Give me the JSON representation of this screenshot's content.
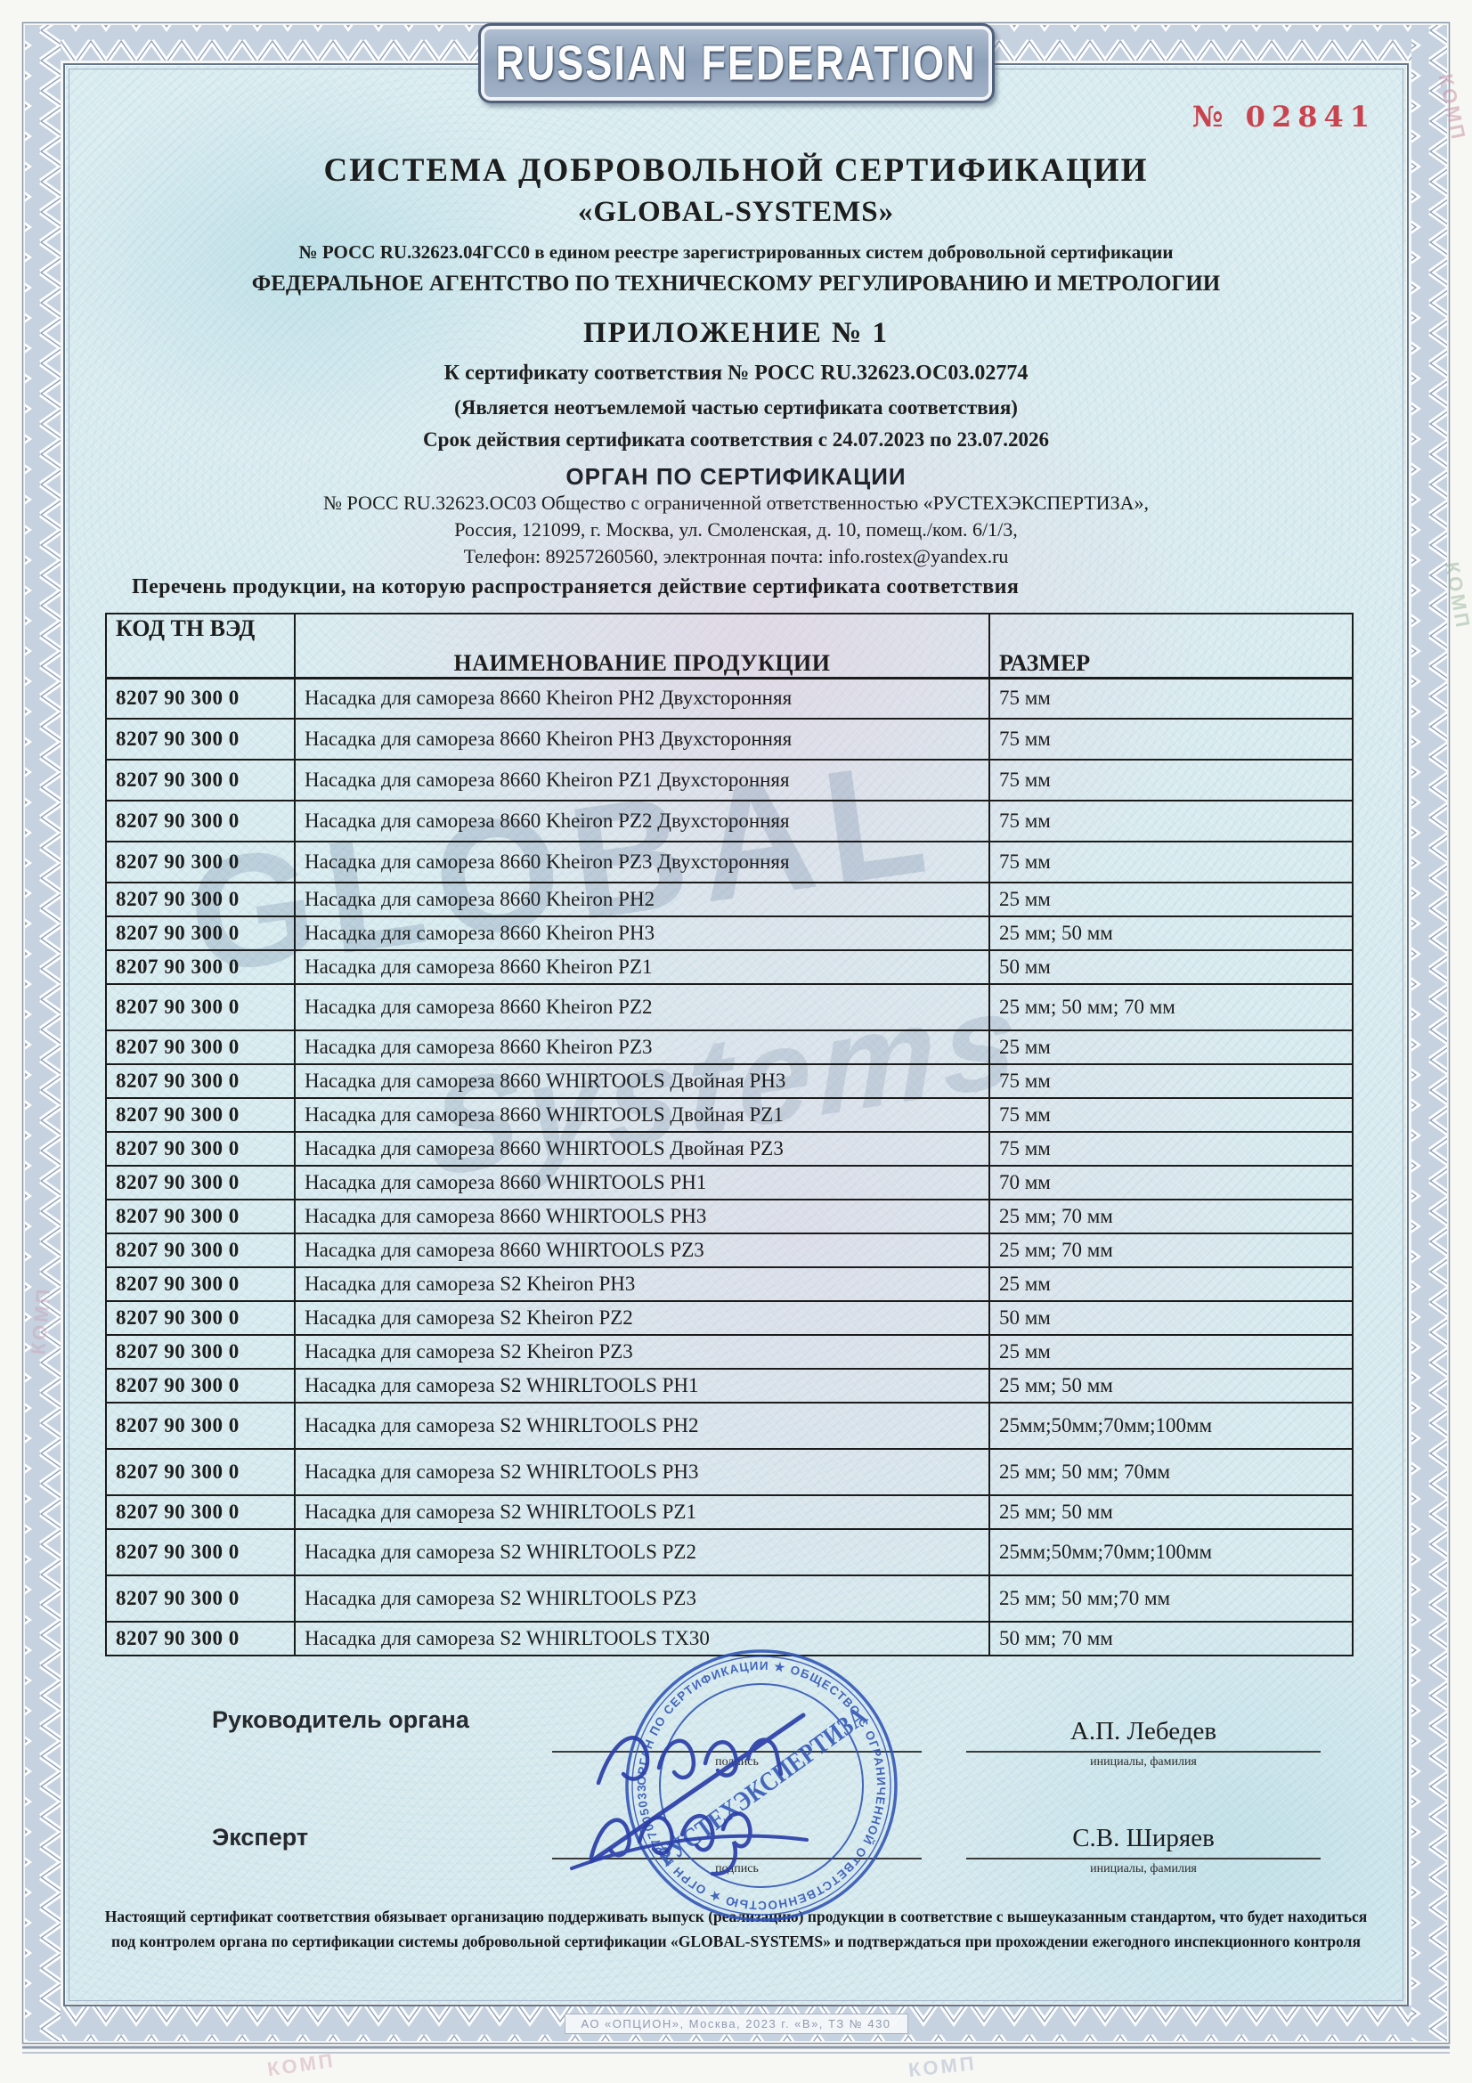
{
  "page_number": "№ 02841",
  "badge": {
    "label": "RUSSIAN FEDERATION"
  },
  "header": {
    "system_title": "СИСТЕМА ДОБРОВОЛЬНОЙ СЕРТИФИКАЦИИ",
    "system_name": "«GLOBAL-SYSTEMS»",
    "registry_line": "№ РОСС RU.32623.04ГСС0 в едином реестре зарегистрированных систем добровольной сертификации",
    "agency_line": "ФЕДЕРАЛЬНОЕ АГЕНТСТВО ПО ТЕХНИЧЕСКОМУ РЕГУЛИРОВАНИЮ И МЕТРОЛОГИИ",
    "appendix_title": "ПРИЛОЖЕНИЕ № 1",
    "certificate_line": "К сертификату соответствия № РОСС RU.32623.ОС03.02774",
    "integral_line": "(Является неотъемлемой частью сертификата соответствия)",
    "validity_line": "Срок действия сертификата соответствия с 24.07.2023 по 23.07.2026",
    "body_title": "ОРГАН ПО СЕРТИФИКАЦИИ",
    "body_line1": "№ РОСС RU.32623.ОС03 Общество с ограниченной ответственностью «РУСТЕХЭКСПЕРТИЗА»,",
    "body_line2": "Россия, 121099, г. Москва, ул. Смоленская, д. 10, помещ./ком. 6/1/3,",
    "body_line3": "Телефон: 89257260560, электронная почта: info.rostex@yandex.ru"
  },
  "table": {
    "caption": "Перечень продукции, на которую распространяется действие сертификата соответствия",
    "columns": [
      "КОД ТН ВЭД",
      "НАИМЕНОВАНИЕ ПРОДУКЦИИ",
      "РАЗМЕР"
    ],
    "rows": [
      {
        "code": "8207 90 300 0",
        "name": "Насадка для самореза 8660 Kheiron PH2 Двухсторонняя",
        "size": "75 мм"
      },
      {
        "code": "8207 90 300 0",
        "name": "Насадка для самореза 8660 Kheiron PH3 Двухсторонняя",
        "size": "75 мм"
      },
      {
        "code": "8207 90 300 0",
        "name": "Насадка для самореза 8660 Kheiron PZ1 Двухсторонняя",
        "size": "75 мм"
      },
      {
        "code": "8207 90 300 0",
        "name": "Насадка для самореза 8660 Kheiron PZ2 Двухсторонняя",
        "size": "75 мм"
      },
      {
        "code": "8207 90 300 0",
        "name": "Насадка для самореза 8660 Kheiron PZ3 Двухсторонняя",
        "size": "75 мм"
      },
      {
        "code": "8207 90 300 0",
        "name": "Насадка для самореза 8660 Kheiron PH2",
        "size": "25 мм"
      },
      {
        "code": "8207 90 300 0",
        "name": "Насадка для самореза 8660 Kheiron PH3",
        "size": "25 мм; 50 мм"
      },
      {
        "code": "8207 90 300 0",
        "name": "Насадка для самореза 8660 Kheiron PZ1",
        "size": "50 мм"
      },
      {
        "code": "8207 90 300 0",
        "name": "Насадка для самореза 8660 Kheiron PZ2",
        "size": "25 мм; 50 мм; 70 мм"
      },
      {
        "code": "8207 90 300 0",
        "name": "Насадка для самореза 8660 Kheiron PZ3",
        "size": "25 мм"
      },
      {
        "code": "8207 90 300 0",
        "name": "Насадка для самореза 8660 WHIRTOOLS Двойная PH3",
        "size": "75 мм"
      },
      {
        "code": "8207 90 300 0",
        "name": "Насадка для самореза 8660 WHIRTOOLS Двойная PZ1",
        "size": "75 мм"
      },
      {
        "code": "8207 90 300 0",
        "name": "Насадка для самореза 8660 WHIRTOOLS Двойная PZ3",
        "size": "75 мм"
      },
      {
        "code": "8207 90 300 0",
        "name": "Насадка для самореза 8660 WHIRTOOLS PH1",
        "size": "70 мм"
      },
      {
        "code": "8207 90 300 0",
        "name": "Насадка для самореза 8660 WHIRTOOLS PH3",
        "size": "25 мм; 70 мм"
      },
      {
        "code": "8207 90 300 0",
        "name": "Насадка для самореза 8660 WHIRTOOLS PZ3",
        "size": "25 мм; 70 мм"
      },
      {
        "code": "8207 90 300 0",
        "name": "Насадка для самореза S2 Kheiron PH3",
        "size": "25 мм"
      },
      {
        "code": "8207 90 300 0",
        "name": "Насадка для самореза S2 Kheiron PZ2",
        "size": "50 мм"
      },
      {
        "code": "8207 90 300 0",
        "name": "Насадка для самореза S2 Kheiron PZ3",
        "size": "25 мм"
      },
      {
        "code": "8207 90 300 0",
        "name": "Насадка для самореза S2 WHIRLTOOLS PH1",
        "size": "25 мм; 50 мм"
      },
      {
        "code": "8207 90 300 0",
        "name": "Насадка для самореза S2 WHIRLTOOLS PH2",
        "size": "25мм;50мм;70мм;100мм"
      },
      {
        "code": "8207 90 300 0",
        "name": "Насадка для самореза S2 WHIRLTOOLS PH3",
        "size": "25 мм; 50 мм; 70мм"
      },
      {
        "code": "8207 90 300 0",
        "name": "Насадка для самореза S2 WHIRLTOOLS PZ1",
        "size": "25 мм; 50 мм"
      },
      {
        "code": "8207 90 300 0",
        "name": "Насадка для самореза S2 WHIRLTOOLS PZ2",
        "size": "25мм;50мм;70мм;100мм"
      },
      {
        "code": "8207 90 300 0",
        "name": "Насадка для самореза S2 WHIRLTOOLS PZ3",
        "size": "25 мм; 50 мм;70 мм"
      },
      {
        "code": "8207 90 300 0",
        "name": "Насадка для самореза S2 WHIRLTOOLS TX30",
        "size": "50 мм; 70 мм"
      }
    ]
  },
  "signatures": {
    "head_label": "Руководитель органа",
    "head_name": "А.П. Лебедев",
    "expert_label": "Эксперт",
    "expert_name": "С.В. Ширяев",
    "sign_caption": "подпись",
    "name_caption": "инициалы, фамилия"
  },
  "stamp": {
    "ring_text": "ОРГАН ПО СЕРТИФИКАЦИИ ★ ОБЩЕСТВО С ОГРАНИЧЕННОЙ ОТВЕТСТВЕННОСТЬЮ ★ ОГРН 1227700503381 ★ ИНН 9704157646 ★ Г. МОСКВА",
    "center_text": "РУСТЕХЭКСПЕРТИЗА"
  },
  "footer": {
    "line1": "Настоящий сертификат соответствия обязывает организацию поддерживать выпуск (реализацию) продукции в соответствие с вышеуказанным стандартом, что будет находиться",
    "line2": "под контролем органа по сертификации системы добровольной сертификации «GLOBAL-SYSTEMS» и подтверждаться при прохождении ежегодного инспекционного контроля",
    "imprint": "АО «ОПЦИОН», Москва, 2023 г. «В», ТЗ № 430"
  },
  "watermarks": {
    "big1": "GLOBAL",
    "big2": "Systems",
    "margin_mark": "КОМП"
  },
  "colors": {
    "accent_red": "#c8323e",
    "stamp_blue": "#2f54b5",
    "band_blue": "#c6d2e0",
    "paper_cyan": "#d9ecef"
  }
}
